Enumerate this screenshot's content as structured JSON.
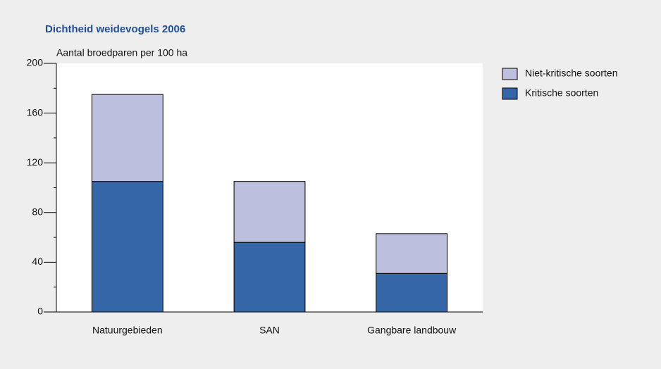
{
  "chart_data": {
    "type": "stacked_bar",
    "title": "Dichtheid weidevogels 2006",
    "y_label": "Aantal broedparen per 100 ha",
    "categories": [
      "Natuurgebieden",
      "SAN",
      "Gangbare landbouw"
    ],
    "series": [
      {
        "name": "Kritische soorten",
        "color": "#3466a8",
        "values": [
          105,
          56,
          31
        ]
      },
      {
        "name": "Niet-kritische soorten",
        "color": "#bcc0de",
        "values": [
          70,
          49,
          32
        ]
      }
    ],
    "ylim": [
      0,
      200
    ],
    "yticks": [
      0,
      40,
      80,
      120,
      160,
      200
    ],
    "yminor": [
      20,
      60,
      100,
      140,
      180
    ]
  }
}
